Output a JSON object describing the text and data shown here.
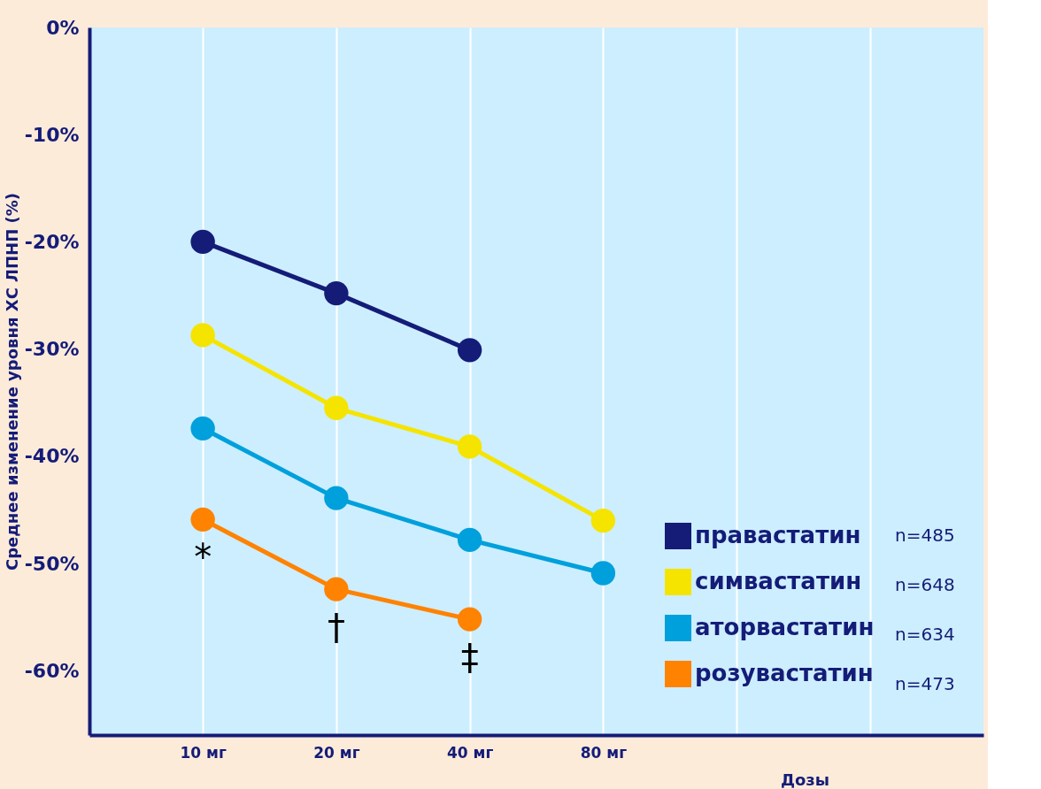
{
  "chart_data": {
    "type": "line",
    "ylabel": "Среднее изменение уровня ХС ЛПНП (%)",
    "xlabel": "Дозы",
    "categories": [
      "10 мг",
      "20 мг",
      "40 мг",
      "80 мг",
      null,
      null
    ],
    "series": [
      {
        "name": "правастатин",
        "color": "#141c78",
        "values": [
          -20.0,
          -24.8,
          -30.1,
          null,
          null,
          null
        ]
      },
      {
        "name": "симвастатин",
        "color": "#f5e400",
        "values": [
          -28.7,
          -35.5,
          -39.1,
          -46.0,
          null,
          null
        ]
      },
      {
        "name": "аторвастатин",
        "color": "#00a0dc",
        "values": [
          -37.4,
          -43.9,
          -47.8,
          -50.9,
          null,
          null
        ]
      },
      {
        "name": "розувастатин",
        "color": "#ff8200",
        "values": [
          -45.9,
          -52.4,
          -55.2,
          null,
          null,
          null
        ]
      }
    ],
    "ylim": [
      -66,
      0
    ],
    "yticks": [
      {
        "value": 0,
        "label": "0%"
      },
      {
        "value": -10,
        "label": "-10%"
      },
      {
        "value": -20,
        "label": "-20%"
      },
      {
        "value": -30,
        "label": "-30%"
      },
      {
        "value": -40,
        "label": "-40%"
      },
      {
        "value": -50,
        "label": "-50%"
      },
      {
        "value": -60,
        "label": "-60%"
      }
    ],
    "annotations": [
      "n=485",
      "n=648",
      "n=634",
      "n=473",
      "*",
      "†",
      "‡"
    ],
    "grid": "x",
    "legend": "right",
    "marker": "circle",
    "line_style": "solid"
  }
}
